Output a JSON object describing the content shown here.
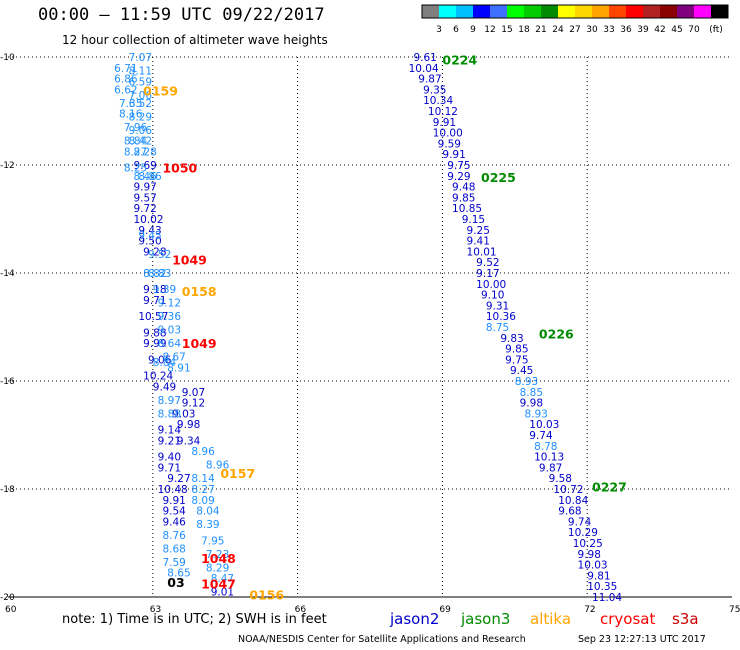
{
  "header": {
    "title": "00:00 – 11:59 UTC 09/22/2017",
    "subtitle": "12 hour collection of altimeter wave heights"
  },
  "colorbar": {
    "colors": [
      "#7f7f7f",
      "#00ffff",
      "#00bfff",
      "#0000ff",
      "#3f6fff",
      "#00ff00",
      "#00cc00",
      "#008b00",
      "#ffff00",
      "#ffd700",
      "#ffa500",
      "#ff4500",
      "#ff0000",
      "#b22222",
      "#8b0000",
      "#800080",
      "#ff00ff",
      "#000000"
    ],
    "labels": [
      "3",
      "6",
      "9",
      "12",
      "15",
      "18",
      "21",
      "24",
      "27",
      "30",
      "33",
      "36",
      "39",
      "42",
      "45",
      "70",
      "(ft)"
    ]
  },
  "footer": {
    "note": "note: 1) Time is in UTC; 2) SWH is in feet",
    "credit": "NOAA/NESDIS Center for Satellite Applications and Research",
    "timestamp": "Sep 23 12:27:13 UTC 2017"
  },
  "legend": [
    {
      "name": "jason2",
      "color": "#0000cc"
    },
    {
      "name": "jason3",
      "color": "#008b00"
    },
    {
      "name": "altika",
      "color": "#ffa500"
    },
    {
      "name": "cryosat",
      "color": "#ff0000"
    },
    {
      "name": "s3a",
      "color": "#cc0000"
    }
  ],
  "chart_data": {
    "type": "scatter",
    "xlim": [
      60,
      75
    ],
    "ylim": [
      -20,
      -10
    ],
    "x_ticks": [
      "60",
      "63",
      "66",
      "69",
      "72",
      "75"
    ],
    "y_ticks": [
      "-10",
      "-12",
      "-14",
      "-16",
      "-18",
      "-20"
    ],
    "grid": true,
    "time_labels": [
      {
        "text": "0224",
        "x": 69.0,
        "y": -10.05,
        "color": "#008b00"
      },
      {
        "text": "0225",
        "x": 69.8,
        "y": -12.22,
        "color": "#008b00"
      },
      {
        "text": "0226",
        "x": 71.0,
        "y": -15.12,
        "color": "#008b00"
      },
      {
        "text": "0227",
        "x": 72.1,
        "y": -17.95,
        "color": "#008b00"
      },
      {
        "text": "0159",
        "x": 62.8,
        "y": -10.62,
        "color": "#ffa500"
      },
      {
        "text": "0158",
        "x": 63.6,
        "y": -14.33,
        "color": "#ffa500"
      },
      {
        "text": "0157",
        "x": 64.4,
        "y": -17.7,
        "color": "#ffa500"
      },
      {
        "text": "0156",
        "x": 65.0,
        "y": -19.95,
        "color": "#ffa500"
      },
      {
        "text": "1050",
        "x": 63.2,
        "y": -12.05,
        "color": "#ff0000"
      },
      {
        "text": "1049",
        "x": 63.4,
        "y": -13.75,
        "color": "#ff0000"
      },
      {
        "text": "1049",
        "x": 63.6,
        "y": -15.3,
        "color": "#ff0000"
      },
      {
        "text": "1048",
        "x": 64.0,
        "y": -19.28,
        "color": "#ff0000"
      },
      {
        "text": "1047",
        "x": 64.0,
        "y": -19.75,
        "color": "#ff0000"
      },
      {
        "text": "03",
        "x": 63.3,
        "y": -19.72,
        "color": "#000000"
      }
    ],
    "series": [
      {
        "name": "jason2",
        "color": "#0000cc",
        "points": [
          {
            "x": 68.4,
            "y": -10.0,
            "v": "9.61"
          },
          {
            "x": 68.3,
            "y": -10.2,
            "v": "10.04"
          },
          {
            "x": 68.5,
            "y": -10.4,
            "v": "9.87"
          },
          {
            "x": 68.6,
            "y": -10.6,
            "v": "9.35"
          },
          {
            "x": 68.6,
            "y": -10.8,
            "v": "10.34"
          },
          {
            "x": 68.7,
            "y": -11.0,
            "v": "10.12"
          },
          {
            "x": 68.8,
            "y": -11.2,
            "v": "9.91"
          },
          {
            "x": 68.8,
            "y": -11.4,
            "v": "10.00"
          },
          {
            "x": 68.9,
            "y": -11.6,
            "v": "9.59"
          },
          {
            "x": 69.0,
            "y": -11.8,
            "v": "9.91"
          },
          {
            "x": 69.1,
            "y": -12.0,
            "v": "9.75"
          },
          {
            "x": 69.1,
            "y": -12.2,
            "v": "9.29"
          },
          {
            "x": 69.2,
            "y": -12.4,
            "v": "9.48"
          },
          {
            "x": 69.2,
            "y": -12.6,
            "v": "9.85"
          },
          {
            "x": 69.2,
            "y": -12.8,
            "v": "10.85"
          },
          {
            "x": 69.4,
            "y": -13.0,
            "v": "9.15"
          },
          {
            "x": 69.5,
            "y": -13.2,
            "v": "9.25"
          },
          {
            "x": 69.5,
            "y": -13.4,
            "v": "9.41"
          },
          {
            "x": 69.5,
            "y": -13.6,
            "v": "10.01"
          },
          {
            "x": 69.7,
            "y": -13.8,
            "v": "9.52"
          },
          {
            "x": 69.7,
            "y": -14.0,
            "v": "9.17"
          },
          {
            "x": 69.7,
            "y": -14.2,
            "v": "10.00"
          },
          {
            "x": 69.8,
            "y": -14.4,
            "v": "9.10"
          },
          {
            "x": 69.9,
            "y": -14.6,
            "v": "9.31"
          },
          {
            "x": 69.9,
            "y": -14.8,
            "v": "10.36"
          },
          {
            "x": 70.2,
            "y": -15.2,
            "v": "9.83"
          },
          {
            "x": 70.3,
            "y": -15.4,
            "v": "9.85"
          },
          {
            "x": 70.3,
            "y": -15.6,
            "v": "9.75"
          },
          {
            "x": 70.4,
            "y": -15.8,
            "v": "9.45"
          },
          {
            "x": 70.6,
            "y": -16.4,
            "v": "9.98"
          },
          {
            "x": 70.8,
            "y": -16.8,
            "v": "10.03"
          },
          {
            "x": 70.8,
            "y": -17.0,
            "v": "9.74"
          },
          {
            "x": 70.9,
            "y": -17.4,
            "v": "10.13"
          },
          {
            "x": 71.0,
            "y": -17.6,
            "v": "9.87"
          },
          {
            "x": 71.2,
            "y": -17.8,
            "v": "9.58"
          },
          {
            "x": 71.3,
            "y": -18.0,
            "v": "10.72"
          },
          {
            "x": 71.4,
            "y": -18.2,
            "v": "10.84"
          },
          {
            "x": 71.4,
            "y": -18.4,
            "v": "9.68"
          },
          {
            "x": 71.6,
            "y": -18.6,
            "v": "9.74"
          },
          {
            "x": 71.6,
            "y": -18.8,
            "v": "10.29"
          },
          {
            "x": 71.7,
            "y": -19.0,
            "v": "10.25"
          },
          {
            "x": 71.8,
            "y": -19.2,
            "v": "9.98"
          },
          {
            "x": 71.8,
            "y": -19.4,
            "v": "10.03"
          },
          {
            "x": 72.0,
            "y": -19.6,
            "v": "9.81"
          },
          {
            "x": 72.0,
            "y": -19.8,
            "v": "10.35"
          },
          {
            "x": 72.1,
            "y": -20.0,
            "v": "11.04"
          },
          {
            "x": 62.6,
            "y": -12.0,
            "v": "9.69"
          },
          {
            "x": 62.6,
            "y": -12.4,
            "v": "9.97"
          },
          {
            "x": 62.6,
            "y": -12.6,
            "v": "9.57"
          },
          {
            "x": 62.6,
            "y": -12.8,
            "v": "9.72"
          },
          {
            "x": 62.6,
            "y": -13.0,
            "v": "10.02"
          },
          {
            "x": 62.7,
            "y": -13.2,
            "v": "9.43"
          },
          {
            "x": 62.7,
            "y": -13.4,
            "v": "9.50"
          },
          {
            "x": 62.8,
            "y": -13.6,
            "v": "9.28"
          },
          {
            "x": 62.8,
            "y": -14.3,
            "v": "9.18"
          },
          {
            "x": 62.8,
            "y": -14.5,
            "v": "9.71"
          },
          {
            "x": 62.7,
            "y": -14.8,
            "v": "10.57"
          },
          {
            "x": 62.8,
            "y": -15.1,
            "v": "9.88"
          },
          {
            "x": 62.8,
            "y": -15.3,
            "v": "9.99"
          },
          {
            "x": 62.9,
            "y": -15.6,
            "v": "9.06"
          },
          {
            "x": 62.8,
            "y": -15.9,
            "v": "10.24"
          },
          {
            "x": 63.0,
            "y": -16.1,
            "v": "9.49"
          },
          {
            "x": 63.6,
            "y": -16.2,
            "v": "9.07"
          },
          {
            "x": 63.6,
            "y": -16.4,
            "v": "9.12"
          },
          {
            "x": 63.4,
            "y": -16.6,
            "v": "9.03"
          },
          {
            "x": 63.5,
            "y": -16.8,
            "v": "9.98"
          },
          {
            "x": 63.1,
            "y": -16.9,
            "v": "9.14"
          },
          {
            "x": 63.5,
            "y": -17.1,
            "v": "9.34"
          },
          {
            "x": 63.1,
            "y": -17.1,
            "v": "9.21"
          },
          {
            "x": 63.1,
            "y": -17.4,
            "v": "9.40"
          },
          {
            "x": 63.1,
            "y": -17.6,
            "v": "9.71"
          },
          {
            "x": 63.3,
            "y": -17.8,
            "v": "9.27"
          },
          {
            "x": 63.1,
            "y": -18.0,
            "v": "10.48"
          },
          {
            "x": 63.2,
            "y": -18.2,
            "v": "9.91"
          },
          {
            "x": 63.2,
            "y": -18.4,
            "v": "9.54"
          },
          {
            "x": 63.2,
            "y": -18.6,
            "v": "9.46"
          },
          {
            "x": 64.2,
            "y": -19.9,
            "v": "9.01"
          }
        ]
      },
      {
        "name": "altika",
        "color": "#1e90ff",
        "points": [
          {
            "x": 62.5,
            "y": -10.0,
            "v": "7.07"
          },
          {
            "x": 62.2,
            "y": -10.2,
            "v": "6.71"
          },
          {
            "x": 62.5,
            "y": -10.25,
            "v": "8.11"
          },
          {
            "x": 62.2,
            "y": -10.4,
            "v": "6.86"
          },
          {
            "x": 62.5,
            "y": -10.45,
            "v": "6.59"
          },
          {
            "x": 62.2,
            "y": -10.6,
            "v": "6.62"
          },
          {
            "x": 62.5,
            "y": -10.7,
            "v": "7.06"
          },
          {
            "x": 62.3,
            "y": -10.85,
            "v": "7.35"
          },
          {
            "x": 62.5,
            "y": -10.85,
            "v": "6.52"
          },
          {
            "x": 62.3,
            "y": -11.05,
            "v": "8.16"
          },
          {
            "x": 62.5,
            "y": -11.1,
            "v": "8.29"
          },
          {
            "x": 62.4,
            "y": -11.3,
            "v": "7.96"
          },
          {
            "x": 62.5,
            "y": -11.35,
            "v": "9.06"
          },
          {
            "x": 62.4,
            "y": -11.55,
            "v": "8.84"
          },
          {
            "x": 62.5,
            "y": -11.55,
            "v": "8.42"
          },
          {
            "x": 62.4,
            "y": -11.75,
            "v": "8.27"
          },
          {
            "x": 62.6,
            "y": -11.75,
            "v": "8.28"
          },
          {
            "x": 62.4,
            "y": -12.05,
            "v": "8.25"
          },
          {
            "x": 62.6,
            "y": -12.2,
            "v": "8.46"
          },
          {
            "x": 62.7,
            "y": -12.2,
            "v": "8.86"
          },
          {
            "x": 62.7,
            "y": -13.3,
            "v": "9.45"
          },
          {
            "x": 62.9,
            "y": -13.65,
            "v": "9.52"
          },
          {
            "x": 62.8,
            "y": -14.0,
            "v": "8.82"
          },
          {
            "x": 62.9,
            "y": -14.0,
            "v": "8.83"
          },
          {
            "x": 63.0,
            "y": -14.3,
            "v": "9.39"
          },
          {
            "x": 63.1,
            "y": -14.55,
            "v": "9.12"
          },
          {
            "x": 63.1,
            "y": -14.8,
            "v": "9.36"
          },
          {
            "x": 63.1,
            "y": -15.05,
            "v": "9.03"
          },
          {
            "x": 63.1,
            "y": -15.3,
            "v": "8.64"
          },
          {
            "x": 63.2,
            "y": -15.55,
            "v": "8.67"
          },
          {
            "x": 63.0,
            "y": -15.65,
            "v": "8.84"
          },
          {
            "x": 63.3,
            "y": -15.75,
            "v": "8.91"
          },
          {
            "x": 63.1,
            "y": -16.35,
            "v": "8.97"
          },
          {
            "x": 63.1,
            "y": -16.6,
            "v": "8.88"
          },
          {
            "x": 63.8,
            "y": -17.3,
            "v": "8.96"
          },
          {
            "x": 64.1,
            "y": -17.55,
            "v": "8.96"
          },
          {
            "x": 63.8,
            "y": -17.8,
            "v": "8.14"
          },
          {
            "x": 63.8,
            "y": -18.0,
            "v": "8.27"
          },
          {
            "x": 63.8,
            "y": -18.2,
            "v": "8.09"
          },
          {
            "x": 63.9,
            "y": -18.4,
            "v": "8.04"
          },
          {
            "x": 63.9,
            "y": -18.65,
            "v": "8.39"
          },
          {
            "x": 63.2,
            "y": -18.85,
            "v": "8.76"
          },
          {
            "x": 64.0,
            "y": -18.95,
            "v": "7.95"
          },
          {
            "x": 63.2,
            "y": -19.1,
            "v": "8.68"
          },
          {
            "x": 64.1,
            "y": -19.2,
            "v": "7.23"
          },
          {
            "x": 63.2,
            "y": -19.35,
            "v": "7.59"
          },
          {
            "x": 64.1,
            "y": -19.45,
            "v": "8.29"
          },
          {
            "x": 63.3,
            "y": -19.55,
            "v": "8.65"
          },
          {
            "x": 64.2,
            "y": -19.65,
            "v": "8.47"
          },
          {
            "x": 69.9,
            "y": -15.0,
            "v": "8.75"
          },
          {
            "x": 70.5,
            "y": -16.0,
            "v": "8.93"
          },
          {
            "x": 70.6,
            "y": -16.2,
            "v": "8.85"
          },
          {
            "x": 70.7,
            "y": -16.6,
            "v": "8.93"
          },
          {
            "x": 70.9,
            "y": -17.2,
            "v": "8.78"
          }
        ]
      }
    ]
  }
}
